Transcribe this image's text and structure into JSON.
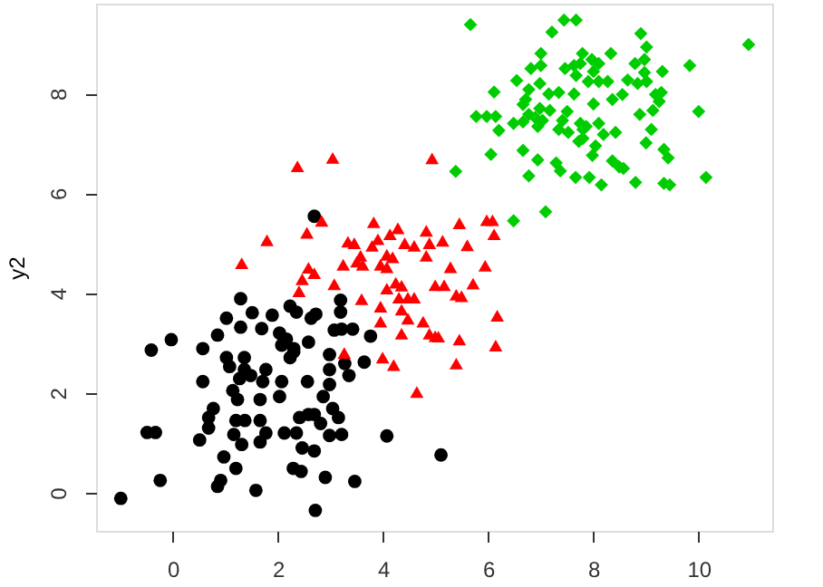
{
  "chart_data": {
    "type": "scatter",
    "ylabel": "y2",
    "xlim": [
      -1.46,
      11.4
    ],
    "ylim": [
      -0.76,
      9.8
    ],
    "xticks": [
      0,
      2,
      4,
      6,
      8,
      10
    ],
    "yticks": [
      0,
      2,
      4,
      6,
      8
    ],
    "grid": false,
    "series": [
      {
        "color": "#000000",
        "marker": "circle",
        "x": [
          -0.99,
          -0.24,
          -0.49,
          -0.33,
          -0.41,
          -0.03,
          0.57,
          0.57,
          0.85,
          1.02,
          1.29,
          1.29,
          1.51,
          1.69,
          1.89,
          2.03,
          2.23,
          2.35,
          2.63,
          2.72,
          3.19,
          3.19,
          3.07,
          3.21,
          3.42,
          3.76,
          2.07,
          2.3,
          2.58,
          2.23,
          1.02,
          1.08,
          1.36,
          1.36,
          1.48,
          1.71,
          1.27,
          2.07,
          1.77,
          2.98,
          2.98,
          3.27,
          3.35,
          3.64,
          2.56,
          2.98,
          1.14,
          1.23,
          1.66,
          2.03,
          0.77,
          0.68,
          0.68,
          0.51,
          1.2,
          1.37,
          1.66,
          1.16,
          1.31,
          1.77,
          1.66,
          2.12,
          2.35,
          2.41,
          2.58,
          2.69,
          2.86,
          3.04,
          3.15,
          2.81,
          2.98,
          3.21,
          2.46,
          2.69,
          4.07,
          5.1,
          0.97,
          1.2,
          0.91,
          0.85,
          1.58,
          2.29,
          2.44,
          2.9,
          3.46,
          2.71,
          2.16,
          2.3,
          2.69
        ],
        "values": [
          -0.11,
          0.25,
          1.21,
          1.21,
          2.86,
          3.07,
          2.89,
          2.23,
          3.16,
          3.5,
          3.89,
          3.32,
          3.61,
          3.29,
          3.56,
          3.2,
          3.74,
          3.62,
          3.5,
          3.58,
          3.86,
          3.62,
          3.26,
          3.28,
          3.28,
          3.14,
          2.96,
          2.89,
          3.02,
          2.71,
          2.71,
          2.53,
          2.71,
          2.47,
          2.35,
          2.23,
          2.29,
          2.23,
          2.47,
          2.77,
          2.47,
          2.59,
          2.35,
          2.62,
          2.23,
          2.17,
          2.05,
          1.87,
          1.87,
          1.93,
          1.69,
          1.51,
          1.3,
          1.06,
          1.45,
          1.45,
          1.45,
          1.17,
          0.97,
          1.2,
          1.02,
          1.2,
          1.2,
          1.51,
          1.57,
          1.57,
          1.93,
          1.69,
          1.51,
          1.39,
          1.15,
          1.17,
          0.9,
          0.84,
          1.14,
          0.76,
          0.72,
          0.49,
          0.25,
          0.13,
          0.05,
          0.49,
          0.43,
          0.31,
          0.23,
          -0.35,
          3.08,
          2.83,
          5.54
        ]
      },
      {
        "color": "#ff0000",
        "marker": "triangle",
        "x": [
          2.37,
          3.04,
          4.93,
          1.79,
          1.31,
          2.55,
          2.83,
          3.82,
          3.33,
          3.45,
          3.79,
          3.9,
          4.13,
          4.28,
          4.07,
          4.18,
          4.41,
          4.59,
          4.82,
          4.88,
          5.13,
          5.45,
          5.97,
          6.08,
          6.11,
          5.6,
          4.82,
          3.57,
          3.61,
          3.5,
          3.95,
          4.07,
          2.58,
          2.69,
          2.46,
          2.4,
          3.24,
          3.07,
          4.24,
          4.35,
          4.3,
          4.47,
          4.59,
          4.07,
          3.59,
          3.95,
          4.35,
          4.47,
          4.76,
          3.95,
          4.35,
          4.88,
          5.05,
          5.28,
          4.99,
          5.16,
          5.71,
          5.94,
          5.49,
          6.17,
          5.45,
          6.14,
          5.39,
          3.26,
          3.99,
          4.2,
          4.64,
          5.39,
          4.99
        ],
        "values": [
          6.54,
          6.71,
          6.7,
          5.06,
          4.6,
          5.21,
          5.45,
          5.42,
          5.03,
          5.0,
          4.95,
          5.08,
          5.18,
          5.3,
          4.77,
          4.72,
          5.0,
          4.95,
          5.25,
          5.0,
          5.05,
          5.4,
          5.46,
          5.46,
          5.18,
          4.96,
          4.75,
          4.75,
          4.57,
          4.63,
          4.57,
          4.52,
          4.51,
          4.4,
          4.28,
          4.04,
          4.57,
          4.18,
          4.21,
          4.15,
          3.91,
          3.91,
          3.91,
          4.09,
          3.88,
          3.73,
          3.67,
          3.49,
          3.43,
          3.43,
          3.19,
          3.19,
          3.13,
          4.52,
          4.16,
          4.16,
          4.19,
          4.55,
          3.94,
          3.55,
          3.07,
          2.95,
          2.59,
          2.8,
          2.71,
          2.56,
          2.02,
          3.97,
          3.14
        ]
      },
      {
        "color": "#00cd00",
        "marker": "diamond",
        "x": [
          5.66,
          7.44,
          7.67,
          7.21,
          8.9,
          10.95,
          9.01,
          7.0,
          7.79,
          7.97,
          8.1,
          8.33,
          8.79,
          8.97,
          8.97,
          9.83,
          9.31,
          6.81,
          7.0,
          7.46,
          7.63,
          7.75,
          7.67,
          8.0,
          6.54,
          6.98,
          7.9,
          8.1,
          8.27,
          8.65,
          8.84,
          9.01,
          6.11,
          6.77,
          6.71,
          6.66,
          7.15,
          7.34,
          7.63,
          8.55,
          8.36,
          8.0,
          9.18,
          9.29,
          9.25,
          9.13,
          7.17,
          6.98,
          6.89,
          6.77,
          5.77,
          5.97,
          6.14,
          7.5,
          8.88,
          10.0,
          6.2,
          6.48,
          6.66,
          6.94,
          7.03,
          7.41,
          7.34,
          7.52,
          7.75,
          7.8,
          7.86,
          8.1,
          8.19,
          8.42,
          7.72,
          7.8,
          9.1,
          9.0,
          6.05,
          6.66,
          8.04,
          7.98,
          9.34,
          9.42,
          6.94,
          7.29,
          7.37,
          8.36,
          8.49,
          8.57,
          6.77,
          7.66,
          7.92,
          8.15,
          8.8,
          9.34,
          9.45,
          10.14,
          5.38,
          6.48,
          7.09
        ],
        "values": [
          9.38,
          9.47,
          9.47,
          9.23,
          9.2,
          8.98,
          8.93,
          8.8,
          8.8,
          8.68,
          8.6,
          8.8,
          8.6,
          8.68,
          8.42,
          8.56,
          8.44,
          8.5,
          8.56,
          8.5,
          8.56,
          8.6,
          8.36,
          8.44,
          8.26,
          8.2,
          8.24,
          8.24,
          8.24,
          8.27,
          8.2,
          8.24,
          8.03,
          8.08,
          7.88,
          7.78,
          7.99,
          8.02,
          7.99,
          7.98,
          7.88,
          7.79,
          7.98,
          8.02,
          7.84,
          7.66,
          7.66,
          7.7,
          7.52,
          7.58,
          7.54,
          7.54,
          7.54,
          7.64,
          7.58,
          7.64,
          7.26,
          7.4,
          7.43,
          7.34,
          7.46,
          7.46,
          7.28,
          7.22,
          7.4,
          7.28,
          7.34,
          7.4,
          7.18,
          7.22,
          7.04,
          7.1,
          7.28,
          7.01,
          6.78,
          6.86,
          6.95,
          6.76,
          6.88,
          6.71,
          6.67,
          6.61,
          6.45,
          6.65,
          6.53,
          6.5,
          6.35,
          6.32,
          6.32,
          6.17,
          6.22,
          6.2,
          6.17,
          6.32,
          6.44,
          5.45,
          5.63
        ]
      }
    ]
  }
}
